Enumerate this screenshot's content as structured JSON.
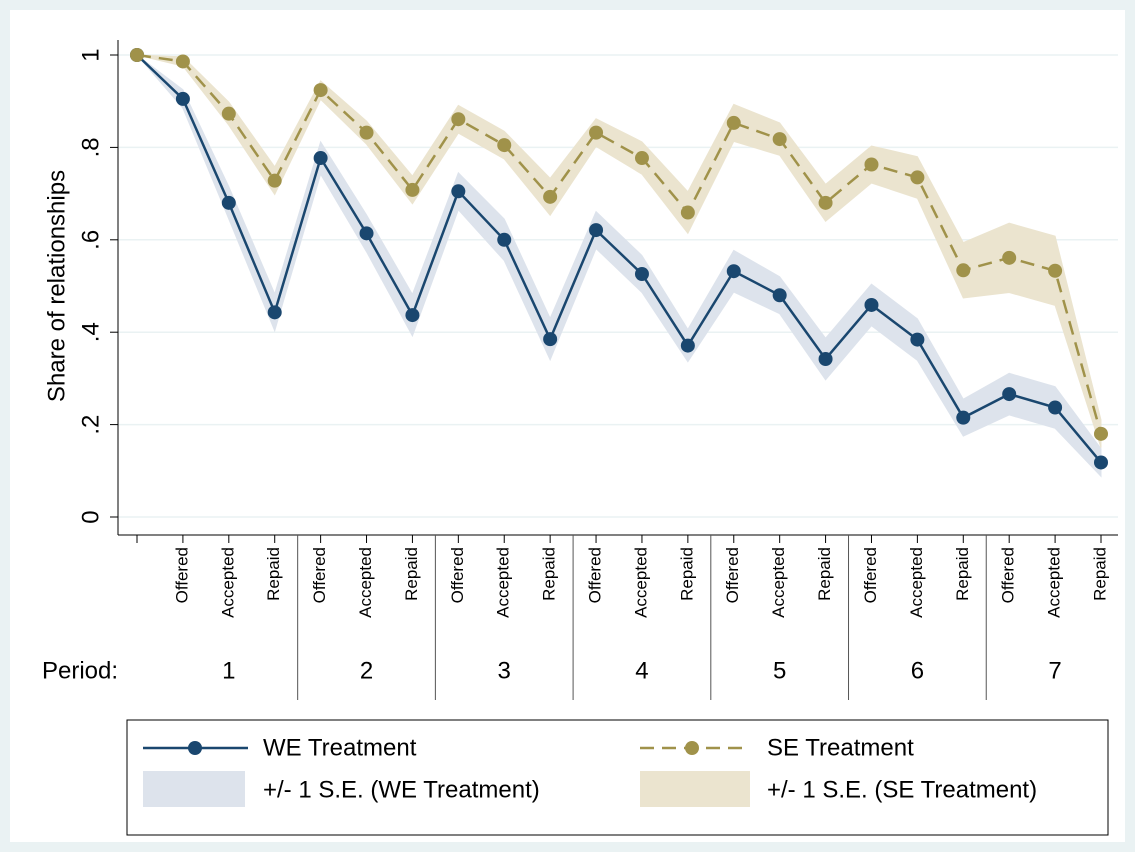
{
  "chart_data": {
    "type": "line",
    "ylabel": "Share of relationships",
    "categories": [
      null,
      "Offered",
      "Accepted",
      "Repaid",
      "Offered",
      "Accepted",
      "Repaid",
      "Offered",
      "Accepted",
      "Repaid",
      "Offered",
      "Accepted",
      "Repaid",
      "Offered",
      "Accepted",
      "Repaid",
      "Offered",
      "Accepted",
      "Repaid",
      "Offered",
      "Accepted",
      "Repaid"
    ],
    "group_label": "Period:",
    "groups": [
      "1",
      "2",
      "3",
      "4",
      "5",
      "6",
      "7"
    ],
    "series": [
      {
        "name": "WE Treatment",
        "band_name": "+/- 1 S.E. (WE Treatment)",
        "color": "#1a476f",
        "band_color": "#dde3ec",
        "dashed": false,
        "values": [
          1,
          0.905,
          0.68,
          0.443,
          0.777,
          0.614,
          0.437,
          0.705,
          0.6,
          0.385,
          0.621,
          0.526,
          0.371,
          0.532,
          0.48,
          0.342,
          0.459,
          0.384,
          0.215,
          0.266,
          0.237,
          0.118
        ],
        "errors": [
          0,
          0.02,
          0.035,
          0.04,
          0.035,
          0.04,
          0.045,
          0.04,
          0.045,
          0.045,
          0.04,
          0.04,
          0.035,
          0.045,
          0.04,
          0.045,
          0.045,
          0.045,
          0.04,
          0.045,
          0.045,
          0.03
        ]
      },
      {
        "name": "SE Treatment",
        "band_name": "+/- 1 S.E. (SE Treatment)",
        "color": "#a0924a",
        "band_color": "#ebe4cf",
        "dashed": true,
        "values": [
          1,
          0.986,
          0.873,
          0.728,
          0.924,
          0.832,
          0.708,
          0.861,
          0.805,
          0.693,
          0.832,
          0.777,
          0.659,
          0.853,
          0.818,
          0.68,
          0.763,
          0.735,
          0.534,
          0.561,
          0.533,
          0.18
        ],
        "errors": [
          0,
          0.01,
          0.025,
          0.03,
          0.02,
          0.025,
          0.03,
          0.03,
          0.03,
          0.04,
          0.03,
          0.035,
          0.045,
          0.04,
          0.035,
          0.04,
          0.04,
          0.045,
          0.06,
          0.075,
          0.075,
          0.03
        ]
      }
    ],
    "ylim": [
      0,
      1
    ],
    "yticks": [
      0,
      {
        "value": 0.2,
        "label": ".2"
      },
      {
        "value": 0.4,
        "label": ".4"
      },
      {
        "value": 0.6,
        "label": ".6"
      },
      {
        "value": 0.8,
        "label": ".8"
      },
      1
    ],
    "grid": true
  }
}
